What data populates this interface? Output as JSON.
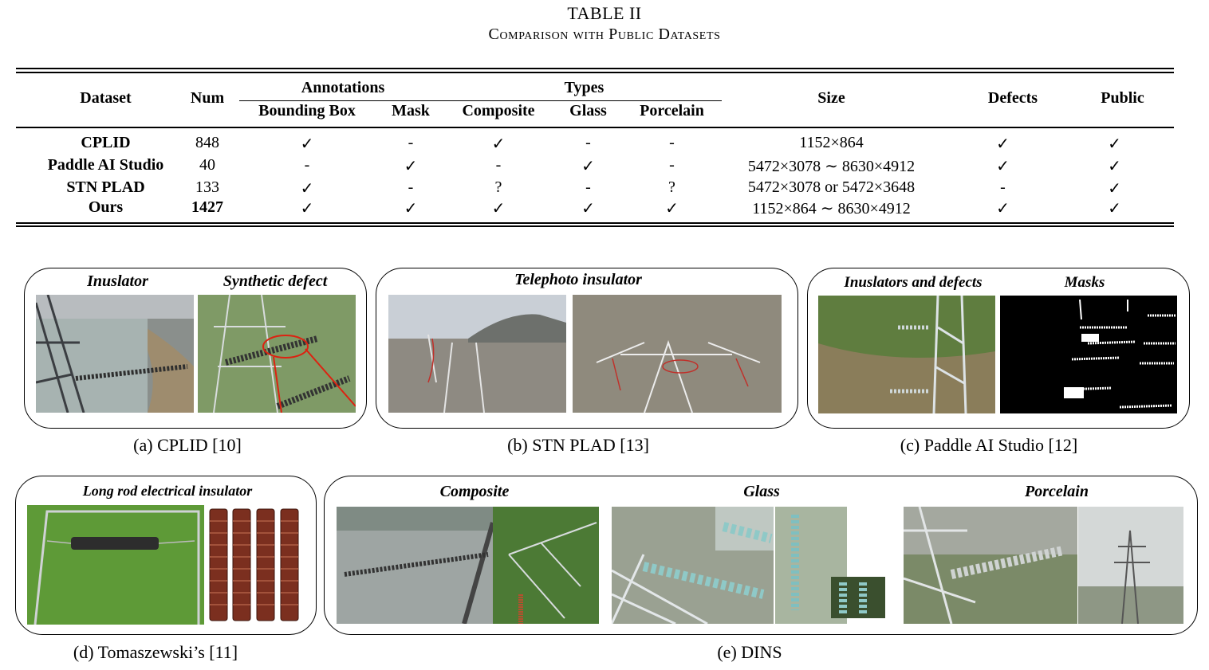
{
  "table": {
    "title": "TABLE II",
    "caption": "Comparison with Public Datasets",
    "headers": {
      "dataset": "Dataset",
      "num": "Num",
      "annotations": "Annotations",
      "types": "Types",
      "bounding_box": "Bounding Box",
      "mask": "Mask",
      "composite": "Composite",
      "glass": "Glass",
      "porcelain": "Porcelain",
      "size": "Size",
      "defects": "Defects",
      "public": "Public"
    },
    "rows": [
      {
        "dataset": "CPLID",
        "num": "848",
        "bbox": "✓",
        "mask": "-",
        "composite": "✓",
        "glass": "-",
        "porcelain": "-",
        "size": "1152×864",
        "defects": "✓",
        "public": "✓"
      },
      {
        "dataset": "Paddle AI Studio",
        "num": "40",
        "bbox": "-",
        "mask": "✓",
        "composite": "-",
        "glass": "✓",
        "porcelain": "-",
        "size": "5472×3078 ∼ 8630×4912",
        "defects": "✓",
        "public": "✓"
      },
      {
        "dataset": "STN PLAD",
        "num": "133",
        "bbox": "✓",
        "mask": "-",
        "composite": "?",
        "glass": "-",
        "porcelain": "?",
        "size": "5472×3078 or 5472×3648",
        "defects": "-",
        "public": "✓"
      },
      {
        "dataset": "Ours",
        "num": "1427",
        "bbox": "✓",
        "mask": "✓",
        "composite": "✓",
        "glass": "✓",
        "porcelain": "✓",
        "size": "1152×864 ∼ 8630×4912",
        "defects": "✓",
        "public": "✓"
      }
    ]
  },
  "figure": {
    "panel_a": {
      "labels": [
        "Inuslator",
        "Synthetic defect"
      ],
      "caption": "(a) CPLID [10]"
    },
    "panel_b": {
      "labels": [
        "Telephoto insulator"
      ],
      "caption": "(b) STN PLAD [13]"
    },
    "panel_c": {
      "labels": [
        "Inuslators and defects",
        "Masks"
      ],
      "caption": "(c) Paddle AI Studio [12]"
    },
    "panel_d": {
      "labels": [
        "Long rod electrical insulator"
      ],
      "caption": "(d) Tomaszewski’s [11]"
    },
    "panel_e": {
      "labels": [
        "Composite",
        "Glass",
        "Porcelain"
      ],
      "caption": "(e) DINS"
    }
  }
}
